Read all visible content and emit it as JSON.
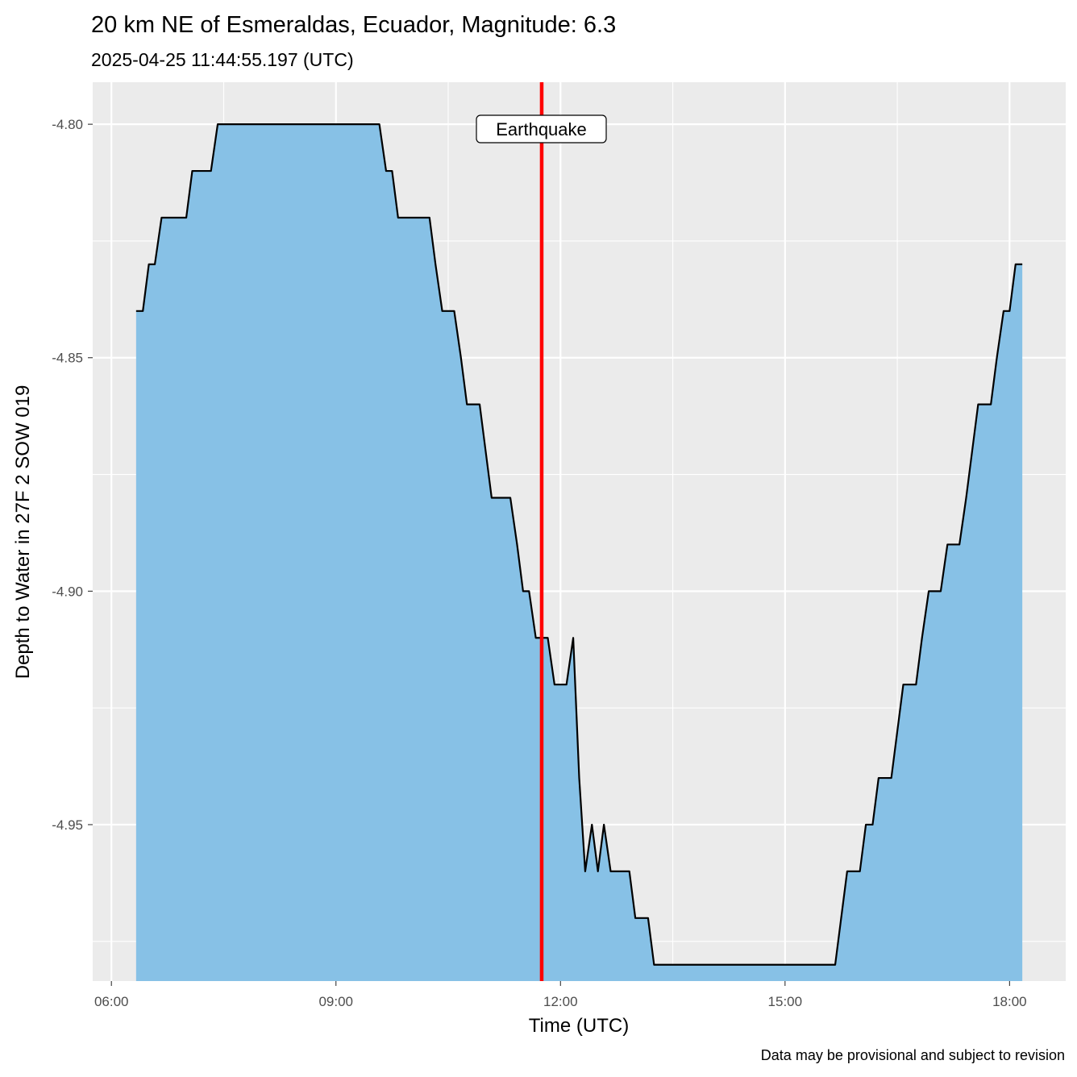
{
  "chart_data": {
    "type": "area",
    "title": "20 km NE of Esmeraldas, Ecuador, Magnitude: 6.3",
    "subtitle": "2025-04-25 11:44:55.197 (UTC)",
    "xlabel": "Time (UTC)",
    "ylabel": "Depth to Water in 27F 2 SOW 019",
    "caption": "Data may be provisional and subject to revision",
    "x_unit": "hours (UTC, decimal)",
    "xlim": [
      5.75,
      18.75
    ],
    "ylim": [
      -4.9835,
      -4.791
    ],
    "x_ticks": [
      6,
      9,
      12,
      15,
      18
    ],
    "x_tick_labels": [
      "06:00",
      "09:00",
      "12:00",
      "15:00",
      "18:00"
    ],
    "y_ticks": [
      -4.8,
      -4.85,
      -4.9,
      -4.95
    ],
    "y_tick_labels": [
      "-4.80",
      "-4.85",
      "-4.90",
      "-4.95"
    ],
    "grid": true,
    "colors": {
      "panel_background": "#ebebeb",
      "grid": "#ffffff",
      "area_fill": "#87c1e6",
      "line": "#000000",
      "event_line": "#ff0000"
    },
    "event": {
      "label": "Earthquake",
      "time_hours": 11.7487
    },
    "series": [
      {
        "name": "Depth to Water",
        "x": [
          6.33,
          6.42,
          6.5,
          6.58,
          6.67,
          6.75,
          6.83,
          6.92,
          7.0,
          7.08,
          7.17,
          7.25,
          7.33,
          7.42,
          7.5,
          7.58,
          7.67,
          7.75,
          7.83,
          7.92,
          8.0,
          8.08,
          8.17,
          8.25,
          8.33,
          8.42,
          8.5,
          8.58,
          8.67,
          8.75,
          8.83,
          8.92,
          9.0,
          9.08,
          9.17,
          9.25,
          9.33,
          9.42,
          9.5,
          9.58,
          9.67,
          9.75,
          9.83,
          9.92,
          10.0,
          10.08,
          10.17,
          10.25,
          10.33,
          10.42,
          10.5,
          10.58,
          10.67,
          10.75,
          10.83,
          10.92,
          11.0,
          11.08,
          11.17,
          11.25,
          11.33,
          11.42,
          11.5,
          11.58,
          11.67,
          11.75,
          11.83,
          11.92,
          12.0,
          12.08,
          12.17,
          12.25,
          12.33,
          12.42,
          12.5,
          12.58,
          12.67,
          12.75,
          12.83,
          12.92,
          13.0,
          13.08,
          13.17,
          13.25,
          13.33,
          13.42,
          13.5,
          13.58,
          13.67,
          13.75,
          13.83,
          13.92,
          14.0,
          14.08,
          14.17,
          14.25,
          14.33,
          14.42,
          14.5,
          14.58,
          14.67,
          14.75,
          14.83,
          14.92,
          15.0,
          15.08,
          15.17,
          15.25,
          15.33,
          15.42,
          15.5,
          15.58,
          15.67,
          15.75,
          15.83,
          15.92,
          16.0,
          16.08,
          16.17,
          16.25,
          16.33,
          16.42,
          16.5,
          16.58,
          16.67,
          16.75,
          16.83,
          16.92,
          17.0,
          17.08,
          17.17,
          17.25,
          17.33,
          17.42,
          17.5,
          17.58,
          17.67,
          17.75,
          17.83,
          17.92,
          18.0,
          18.08,
          18.17
        ],
        "values": [
          -4.84,
          -4.84,
          -4.83,
          -4.83,
          -4.82,
          -4.82,
          -4.82,
          -4.82,
          -4.82,
          -4.81,
          -4.81,
          -4.81,
          -4.81,
          -4.8,
          -4.8,
          -4.8,
          -4.8,
          -4.8,
          -4.8,
          -4.8,
          -4.8,
          -4.8,
          -4.8,
          -4.8,
          -4.8,
          -4.8,
          -4.8,
          -4.8,
          -4.8,
          -4.8,
          -4.8,
          -4.8,
          -4.8,
          -4.8,
          -4.8,
          -4.8,
          -4.8,
          -4.8,
          -4.8,
          -4.8,
          -4.81,
          -4.81,
          -4.82,
          -4.82,
          -4.82,
          -4.82,
          -4.82,
          -4.82,
          -4.83,
          -4.84,
          -4.84,
          -4.84,
          -4.85,
          -4.86,
          -4.86,
          -4.86,
          -4.87,
          -4.88,
          -4.88,
          -4.88,
          -4.88,
          -4.89,
          -4.9,
          -4.9,
          -4.91,
          -4.91,
          -4.91,
          -4.92,
          -4.92,
          -4.92,
          -4.91,
          -4.94,
          -4.96,
          -4.95,
          -4.96,
          -4.95,
          -4.96,
          -4.96,
          -4.96,
          -4.96,
          -4.97,
          -4.97,
          -4.97,
          -4.98,
          -4.98,
          -4.98,
          -4.98,
          -4.98,
          -4.98,
          -4.98,
          -4.98,
          -4.98,
          -4.98,
          -4.98,
          -4.98,
          -4.98,
          -4.98,
          -4.98,
          -4.98,
          -4.98,
          -4.98,
          -4.98,
          -4.98,
          -4.98,
          -4.98,
          -4.98,
          -4.98,
          -4.98,
          -4.98,
          -4.98,
          -4.98,
          -4.98,
          -4.98,
          -4.97,
          -4.96,
          -4.96,
          -4.96,
          -4.95,
          -4.95,
          -4.94,
          -4.94,
          -4.94,
          -4.93,
          -4.92,
          -4.92,
          -4.92,
          -4.91,
          -4.9,
          -4.9,
          -4.9,
          -4.89,
          -4.89,
          -4.89,
          -4.88,
          -4.87,
          -4.86,
          -4.86,
          -4.86,
          -4.85,
          -4.84,
          -4.84,
          -4.83,
          -4.83
        ]
      }
    ]
  }
}
